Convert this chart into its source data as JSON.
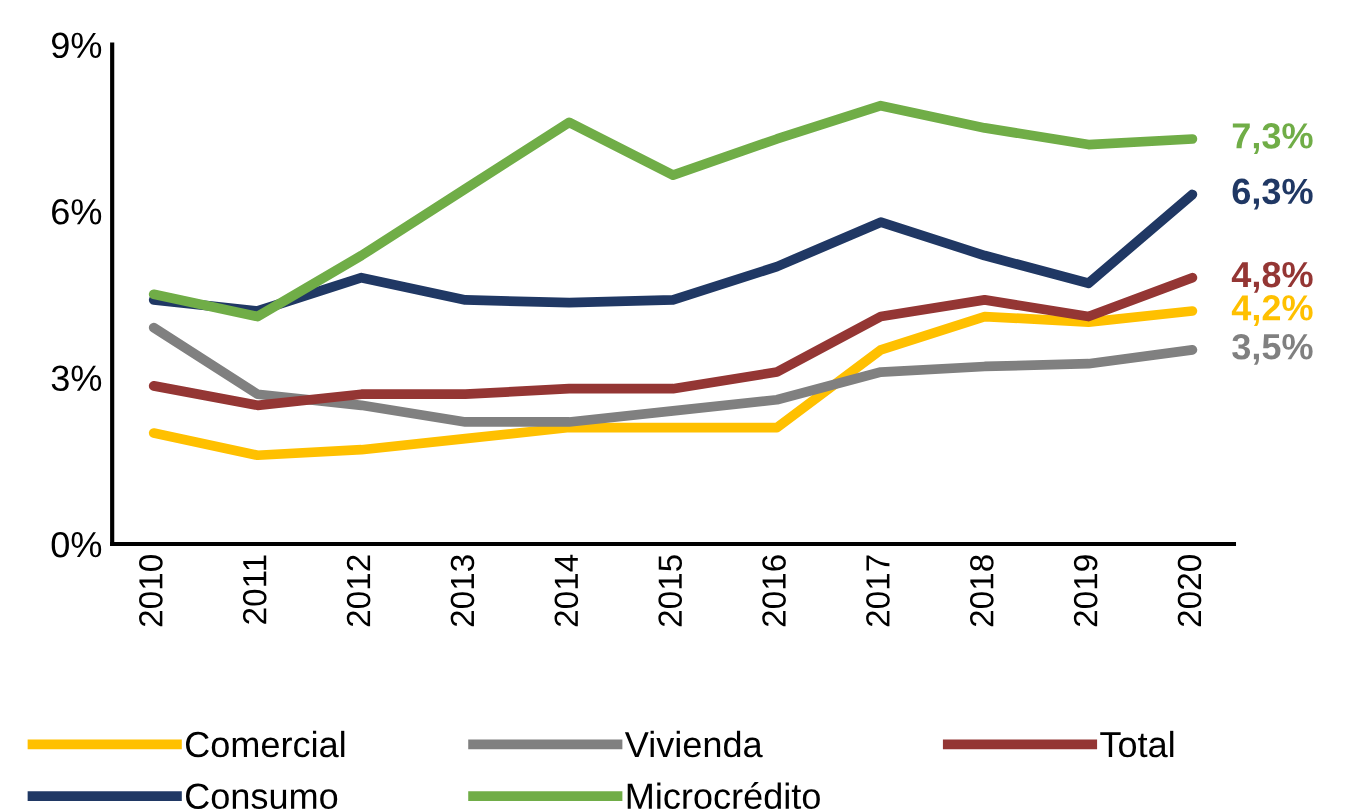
{
  "chart_data": {
    "type": "line",
    "categories": [
      "2010",
      "2011",
      "2012",
      "2013",
      "2014",
      "2015",
      "2016",
      "2017",
      "2018",
      "2019",
      "2020"
    ],
    "series": [
      {
        "name": "Comercial",
        "color": "#ffc000",
        "values": [
          2.0,
          1.6,
          1.7,
          1.9,
          2.1,
          2.1,
          2.1,
          3.5,
          4.1,
          4.0,
          4.2
        ],
        "value_labels": [
          null,
          null,
          null,
          null,
          null,
          null,
          null,
          null,
          null,
          null,
          "4,2%"
        ]
      },
      {
        "name": "Consumo",
        "color": "#203864",
        "values": [
          4.4,
          4.2,
          4.8,
          4.4,
          4.35,
          4.4,
          5.0,
          5.8,
          5.2,
          4.7,
          6.3
        ],
        "value_labels": [
          null,
          null,
          null,
          null,
          null,
          null,
          null,
          null,
          null,
          null,
          "6,3%"
        ]
      },
      {
        "name": "Vivienda",
        "color": "#808080",
        "values": [
          3.9,
          2.7,
          2.5,
          2.2,
          2.2,
          2.4,
          2.6,
          3.1,
          3.2,
          3.25,
          3.5
        ],
        "value_labels": [
          null,
          null,
          null,
          null,
          null,
          null,
          null,
          null,
          null,
          null,
          "3,5%"
        ]
      },
      {
        "name": "Microcrédito",
        "color": "#70ad47",
        "values": [
          4.5,
          4.1,
          5.2,
          6.4,
          7.6,
          6.65,
          7.3,
          7.9,
          7.5,
          7.2,
          7.3
        ],
        "value_labels": [
          null,
          null,
          null,
          null,
          null,
          null,
          null,
          null,
          null,
          null,
          "7,3%"
        ]
      },
      {
        "name": "Total",
        "color": "#943634",
        "values": [
          2.85,
          2.5,
          2.7,
          2.7,
          2.8,
          2.8,
          3.1,
          4.1,
          4.4,
          4.1,
          4.8
        ],
        "value_labels": [
          null,
          null,
          null,
          null,
          null,
          null,
          null,
          null,
          null,
          null,
          "4,8%"
        ]
      }
    ],
    "ylim": [
      0,
      9
    ],
    "yticks": [
      {
        "value": 0,
        "label": "0%"
      },
      {
        "value": 3,
        "label": "3%"
      },
      {
        "value": 6,
        "label": "6%"
      },
      {
        "value": 9,
        "label": "9%"
      }
    ],
    "grid": false,
    "legend": "bottom",
    "marker": "none",
    "line_style": "solid"
  }
}
